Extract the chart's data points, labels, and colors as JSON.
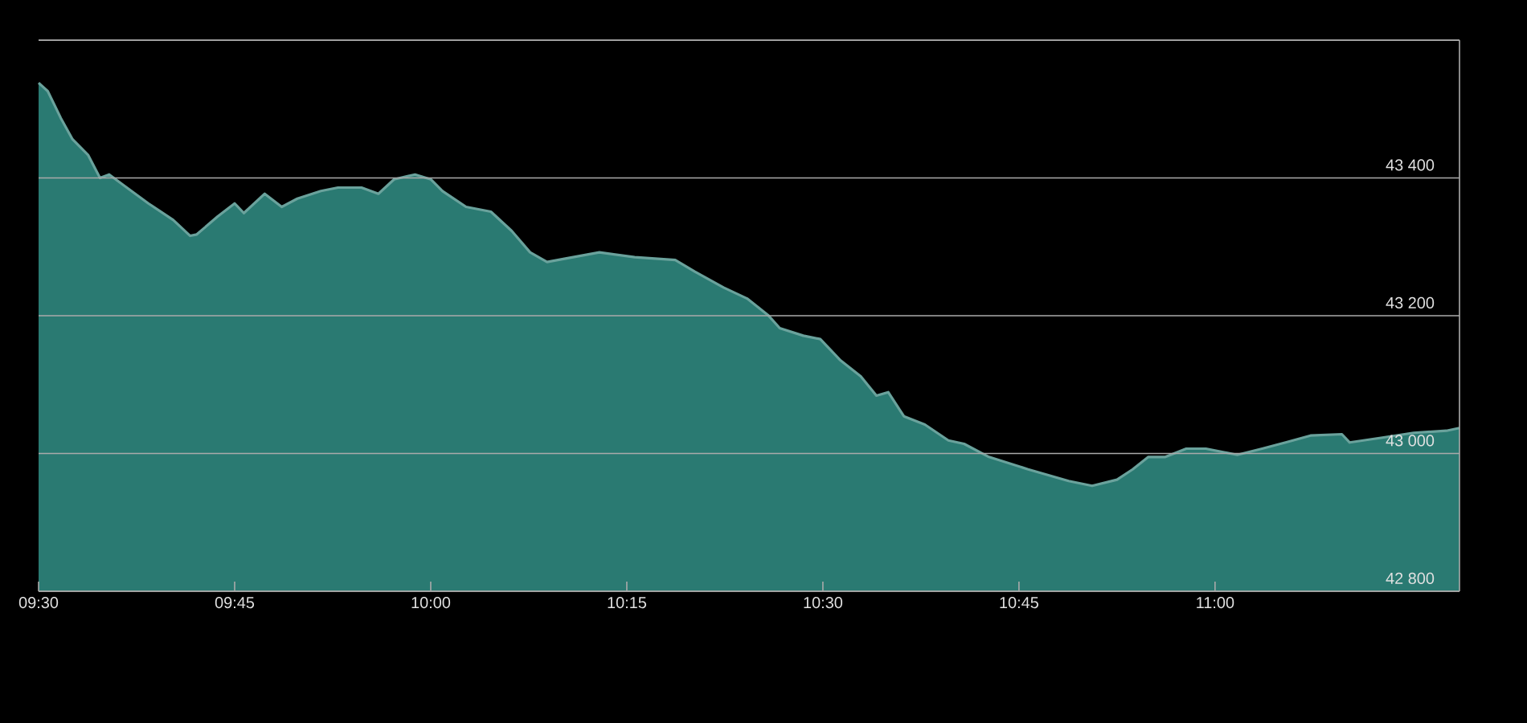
{
  "chart_data": {
    "type": "area",
    "x": [
      9.5,
      9.5117,
      9.5283,
      9.5433,
      9.5633,
      9.5783,
      9.59,
      9.61,
      9.64,
      9.6717,
      9.6933,
      9.7017,
      9.7283,
      9.75,
      9.7617,
      9.7883,
      9.81,
      9.83,
      9.86,
      9.8817,
      9.9117,
      9.9333,
      9.9533,
      9.98,
      10.0,
      10.015,
      10.045,
      10.0767,
      10.1033,
      10.1267,
      10.1483,
      10.1717,
      10.215,
      10.26,
      10.3117,
      10.3367,
      10.3733,
      10.4033,
      10.43,
      10.445,
      10.475,
      10.4967,
      10.5217,
      10.5483,
      10.5683,
      10.5833,
      10.6033,
      10.63,
      10.66,
      10.68,
      10.7117,
      10.7617,
      10.8133,
      10.8433,
      10.875,
      10.895,
      10.915,
      10.9367,
      10.9633,
      10.9883,
      11.0283,
      11.06,
      11.09,
      11.1217,
      11.1617,
      11.1717,
      11.2133,
      11.2533,
      11.295,
      11.3117
    ],
    "series": [
      {
        "color": "#2a7a72",
        "values": [
          43538,
          43526,
          43487,
          43456,
          43433,
          43400,
          43405,
          43388,
          43363,
          43339,
          43316,
          43318,
          43344,
          43363,
          43349,
          43377,
          43358,
          43370,
          43381,
          43386,
          43386,
          43377,
          43398,
          43405,
          43398,
          43381,
          43358,
          43351,
          43323,
          43292,
          43278,
          43283,
          43292,
          43285,
          43281,
          43264,
          43241,
          43225,
          43201,
          43182,
          43171,
          43166,
          43136,
          43112,
          43084,
          43089,
          43054,
          43042,
          43019,
          43014,
          42995,
          42977,
          42960,
          42953,
          42962,
          42977,
          42995,
          42995,
          43007,
          43007,
          42998,
          43007,
          43016,
          43026,
          43028,
          43016,
          43023,
          43030,
          43033,
          43037
        ]
      }
    ],
    "xlim": [
      9.5,
      11.3117
    ],
    "xticks": [
      {
        "value": 9.5,
        "label": "09:30"
      },
      {
        "value": 9.75,
        "label": "09:45"
      },
      {
        "value": 10.0,
        "label": "10:00"
      },
      {
        "value": 10.25,
        "label": "10:15"
      },
      {
        "value": 10.5,
        "label": "10:30"
      },
      {
        "value": 10.75,
        "label": "10:45"
      },
      {
        "value": 11.0,
        "label": "11:00"
      }
    ],
    "ylim": [
      42800,
      43600
    ],
    "yticks": [
      {
        "value": 42800,
        "label": "42 800"
      },
      {
        "value": 43000,
        "label": "43 000"
      },
      {
        "value": 43200,
        "label": "43 200"
      },
      {
        "value": 43400,
        "label": "43 400"
      },
      {
        "value": 43600,
        "label": null
      }
    ],
    "grid": "y"
  }
}
